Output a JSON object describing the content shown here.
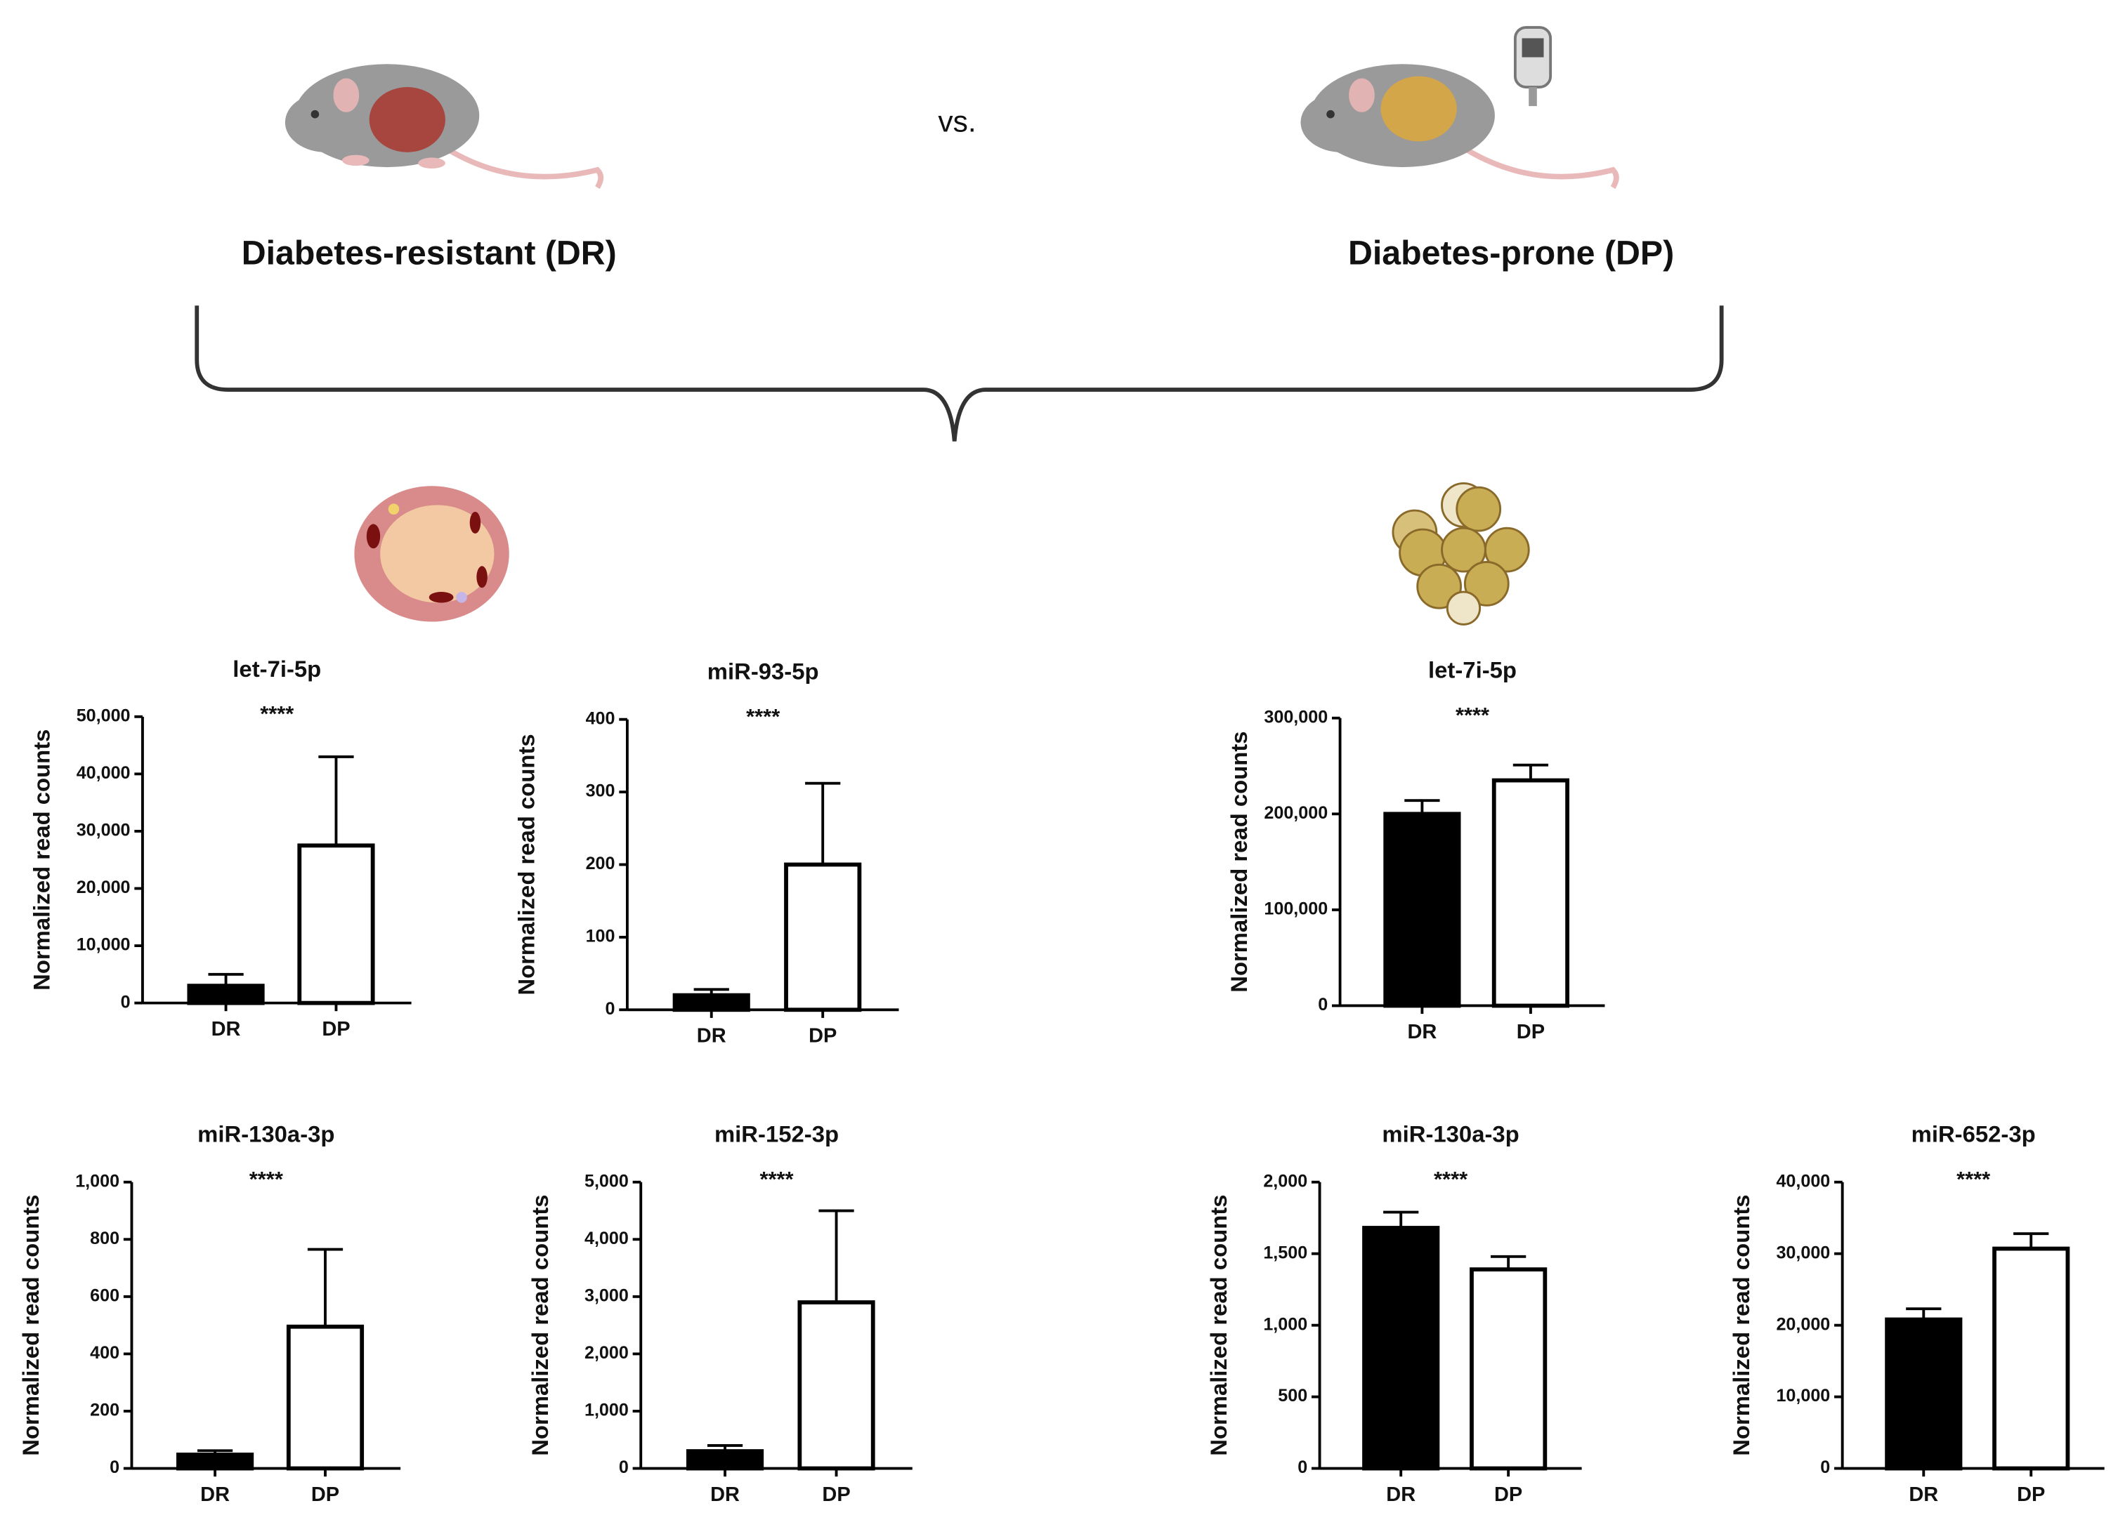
{
  "header": {
    "left_label": "Diabetes-resistant (DR)",
    "right_label": "Diabetes-prone (DP)",
    "versus": "vs."
  },
  "chart_data": [
    {
      "type": "bar",
      "title": "let-7i-5p",
      "significance": "****",
      "ylabel": "Normalized read counts",
      "categories": [
        "DR",
        "DP"
      ],
      "values": [
        3000,
        27500
      ],
      "errors": [
        2000,
        15500
      ],
      "colors": [
        "#000000",
        "#ffffff"
      ],
      "ylim": [
        0,
        50000
      ],
      "yticks": [
        0,
        {
          "value": 10000,
          "label": "10,000"
        },
        {
          "value": 20000,
          "label": "20,000"
        },
        {
          "value": 30000,
          "label": "30,000"
        },
        {
          "value": 40000,
          "label": "40,000"
        },
        {
          "value": 50000,
          "label": "50,000"
        }
      ]
    },
    {
      "type": "bar",
      "title": "miR-93-5p",
      "significance": "****",
      "ylabel": "Normalized read counts",
      "categories": [
        "DR",
        "DP"
      ],
      "values": [
        20,
        200
      ],
      "errors": [
        8,
        112
      ],
      "colors": [
        "#000000",
        "#ffffff"
      ],
      "ylim": [
        0,
        400
      ],
      "yticks": [
        0,
        100,
        200,
        300,
        400
      ]
    },
    {
      "type": "bar",
      "title": "let-7i-5p",
      "significance": "****",
      "ylabel": "Normalized read counts",
      "categories": [
        "DR",
        "DP"
      ],
      "values": [
        200000,
        235000
      ],
      "errors": [
        14000,
        16000
      ],
      "colors": [
        "#000000",
        "#ffffff"
      ],
      "ylim": [
        0,
        300000
      ],
      "yticks": [
        0,
        {
          "value": 100000,
          "label": "100,000"
        },
        {
          "value": 200000,
          "label": "200,000"
        },
        {
          "value": 300000,
          "label": "300,000"
        }
      ]
    },
    {
      "type": "bar",
      "title": "miR-130a-3p",
      "significance": "****",
      "ylabel": "Normalized read counts",
      "categories": [
        "DR",
        "DP"
      ],
      "values": [
        48,
        495
      ],
      "errors": [
        14,
        270
      ],
      "colors": [
        "#000000",
        "#ffffff"
      ],
      "ylim": [
        0,
        1000
      ],
      "yticks": [
        0,
        200,
        400,
        600,
        800,
        {
          "value": 1000,
          "label": "1,000"
        }
      ]
    },
    {
      "type": "bar",
      "title": "miR-152-3p",
      "significance": "****",
      "ylabel": "Normalized read counts",
      "categories": [
        "DR",
        "DP"
      ],
      "values": [
        300,
        2900
      ],
      "errors": [
        100,
        1600
      ],
      "colors": [
        "#000000",
        "#ffffff"
      ],
      "ylim": [
        0,
        5000
      ],
      "yticks": [
        0,
        {
          "value": 1000,
          "label": "1,000"
        },
        {
          "value": 2000,
          "label": "2,000"
        },
        {
          "value": 3000,
          "label": "3,000"
        },
        {
          "value": 4000,
          "label": "4,000"
        },
        {
          "value": 5000,
          "label": "5,000"
        }
      ]
    },
    {
      "type": "bar",
      "title": "miR-130a-3p",
      "significance": "****",
      "ylabel": "Normalized read counts",
      "categories": [
        "DR",
        "DP"
      ],
      "values": [
        1680,
        1390
      ],
      "errors": [
        110,
        90
      ],
      "colors": [
        "#000000",
        "#ffffff"
      ],
      "ylim": [
        0,
        2000
      ],
      "yticks": [
        0,
        500,
        {
          "value": 1000,
          "label": "1,000"
        },
        {
          "value": 1500,
          "label": "1,500"
        },
        {
          "value": 2000,
          "label": "2,000"
        }
      ]
    },
    {
      "type": "bar",
      "title": "miR-652-3p",
      "significance": "****",
      "ylabel": "Normalized read counts",
      "categories": [
        "DR",
        "DP"
      ],
      "values": [
        20800,
        30700
      ],
      "errors": [
        1500,
        2100
      ],
      "colors": [
        "#000000",
        "#ffffff"
      ],
      "ylim": [
        0,
        40000
      ],
      "yticks": [
        0,
        {
          "value": 10000,
          "label": "10,000"
        },
        {
          "value": 20000,
          "label": "20,000"
        },
        {
          "value": 30000,
          "label": "30,000"
        },
        {
          "value": 40000,
          "label": "40,000"
        }
      ]
    }
  ]
}
